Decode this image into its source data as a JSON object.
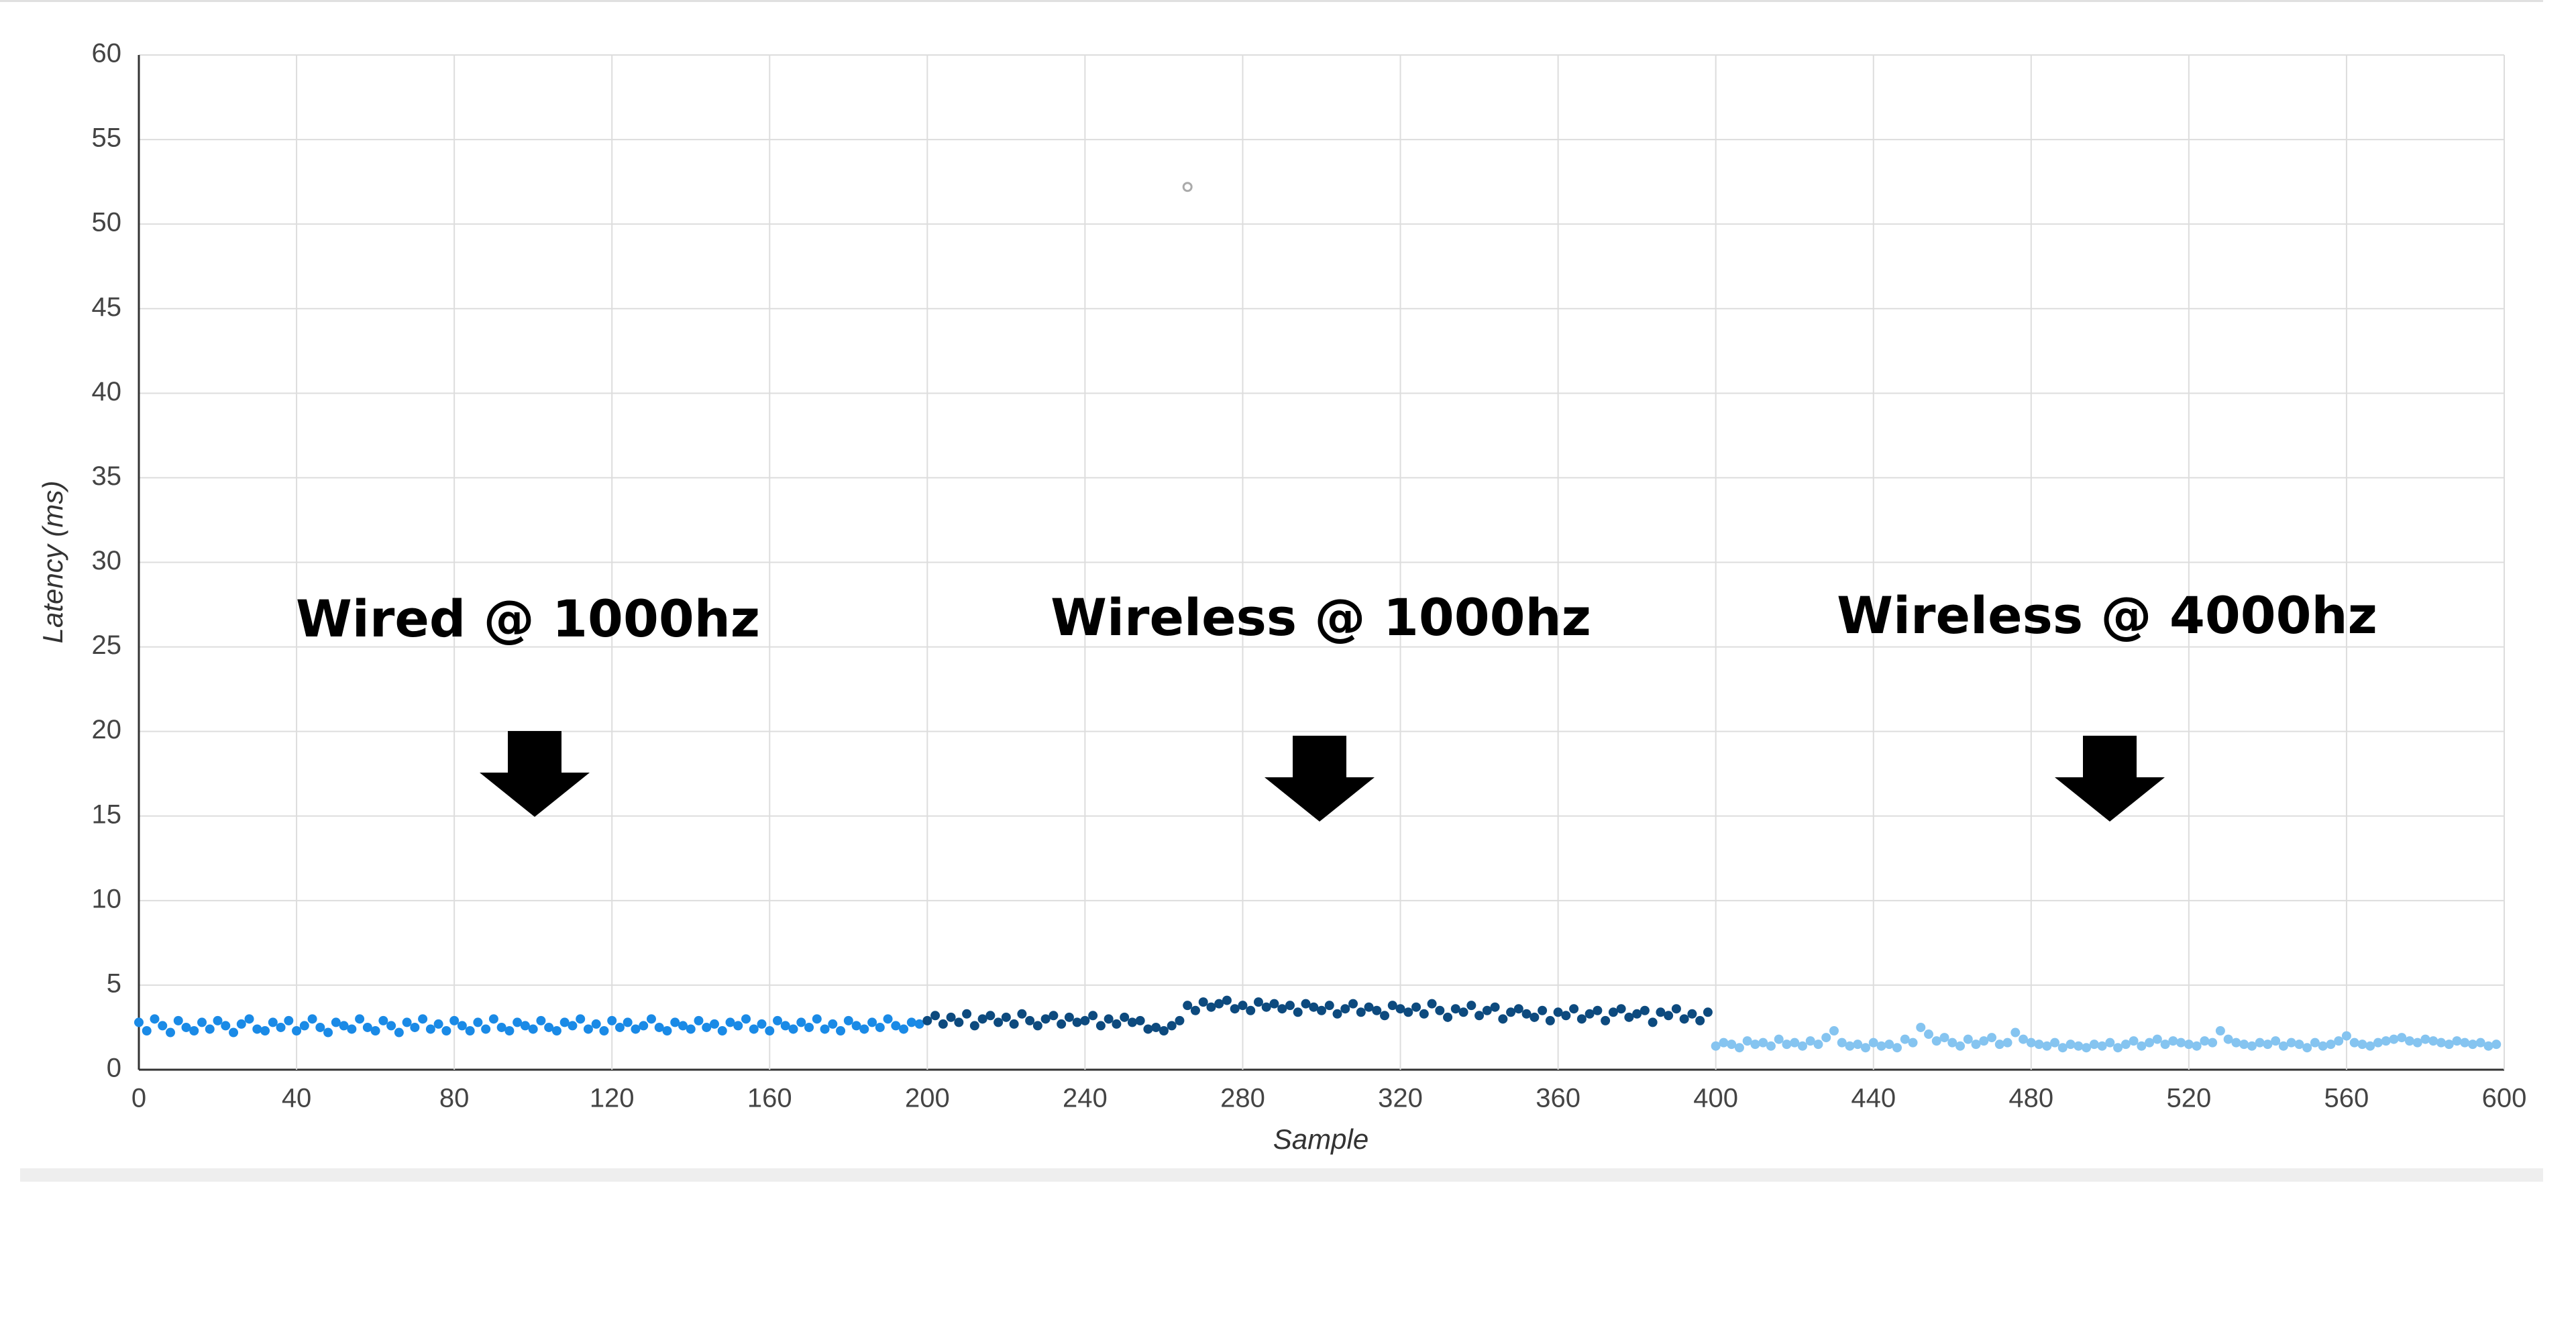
{
  "chart_data": {
    "type": "scatter",
    "xlabel": "Sample",
    "ylabel": "Latency (ms)",
    "xlim": [
      0,
      600
    ],
    "xticks": [
      0,
      40,
      80,
      120,
      160,
      200,
      240,
      280,
      320,
      360,
      400,
      440,
      480,
      520,
      560,
      600
    ],
    "ylim": [
      0,
      60
    ],
    "yticks": [
      0,
      5,
      10,
      15,
      20,
      25,
      30,
      35,
      40,
      45,
      50,
      55,
      60
    ],
    "grid": true,
    "annotations": [
      "Wired @ 1000hz",
      "Wireless @ 1000hz",
      "Wireless @ 4000hz"
    ],
    "series": [
      {
        "color": "#1a8ae6",
        "x": [
          0,
          2,
          4,
          6,
          8,
          10,
          12,
          14,
          16,
          18,
          20,
          22,
          24,
          26,
          28,
          30,
          32,
          34,
          36,
          38,
          40,
          42,
          44,
          46,
          48,
          50,
          52,
          54,
          56,
          58,
          60,
          62,
          64,
          66,
          68,
          70,
          72,
          74,
          76,
          78,
          80,
          82,
          84,
          86,
          88,
          90,
          92,
          94,
          96,
          98,
          100,
          102,
          104,
          106,
          108,
          110,
          112,
          114,
          116,
          118,
          120,
          122,
          124,
          126,
          128,
          130,
          132,
          134,
          136,
          138,
          140,
          142,
          144,
          146,
          148,
          150,
          152,
          154,
          156,
          158,
          160,
          162,
          164,
          166,
          168,
          170,
          172,
          174,
          176,
          178,
          180,
          182,
          184,
          186,
          188,
          190,
          192,
          194,
          196,
          198
        ],
        "values": [
          2.8,
          2.3,
          3.0,
          2.6,
          2.2,
          2.9,
          2.5,
          2.3,
          2.8,
          2.4,
          2.9,
          2.6,
          2.2,
          2.7,
          3.0,
          2.4,
          2.3,
          2.8,
          2.5,
          2.9,
          2.3,
          2.6,
          3.0,
          2.5,
          2.2,
          2.8,
          2.6,
          2.4,
          3.0,
          2.5,
          2.3,
          2.9,
          2.6,
          2.2,
          2.8,
          2.5,
          3.0,
          2.4,
          2.7,
          2.3,
          2.9,
          2.6,
          2.3,
          2.8,
          2.4,
          3.0,
          2.5,
          2.3,
          2.8,
          2.6,
          2.4,
          2.9,
          2.5,
          2.3,
          2.8,
          2.6,
          3.0,
          2.4,
          2.7,
          2.3,
          2.9,
          2.5,
          2.8,
          2.4,
          2.6,
          3.0,
          2.5,
          2.3,
          2.8,
          2.6,
          2.4,
          2.9,
          2.5,
          2.7,
          2.3,
          2.8,
          2.6,
          3.0,
          2.4,
          2.7,
          2.3,
          2.9,
          2.6,
          2.4,
          2.8,
          2.5,
          3.0,
          2.4,
          2.7,
          2.3,
          2.9,
          2.6,
          2.4,
          2.8,
          2.5,
          3.0,
          2.6,
          2.4,
          2.8,
          2.7
        ]
      },
      {
        "color": "#0d4a7e",
        "x": [
          200,
          202,
          204,
          206,
          208,
          210,
          212,
          214,
          216,
          218,
          220,
          222,
          224,
          226,
          228,
          230,
          232,
          234,
          236,
          238,
          240,
          242,
          244,
          246,
          248,
          250,
          252,
          254,
          256,
          258,
          260,
          262,
          264,
          266,
          268,
          270,
          272,
          274,
          276,
          278,
          280,
          282,
          284,
          286,
          288,
          290,
          292,
          294,
          296,
          298,
          300,
          302,
          304,
          306,
          308,
          310,
          312,
          314,
          316,
          318,
          320,
          322,
          324,
          326,
          328,
          330,
          332,
          334,
          336,
          338,
          340,
          342,
          344,
          346,
          348,
          350,
          352,
          354,
          356,
          358,
          360,
          362,
          364,
          366,
          368,
          370,
          372,
          374,
          376,
          378,
          380,
          382,
          384,
          386,
          388,
          390,
          392,
          394,
          396,
          398
        ],
        "values": [
          2.9,
          3.2,
          2.7,
          3.1,
          2.8,
          3.3,
          2.6,
          3.0,
          3.2,
          2.8,
          3.1,
          2.7,
          3.3,
          2.9,
          2.6,
          3.0,
          3.2,
          2.7,
          3.1,
          2.8,
          2.9,
          3.2,
          2.6,
          3.0,
          2.7,
          3.1,
          2.8,
          2.9,
          2.4,
          2.5,
          2.3,
          2.6,
          2.9,
          3.8,
          3.5,
          4.0,
          3.7,
          3.9,
          4.1,
          3.6,
          3.8,
          3.5,
          4.0,
          3.7,
          3.9,
          3.6,
          3.8,
          3.4,
          3.9,
          3.7,
          3.5,
          3.8,
          3.3,
          3.6,
          3.9,
          3.4,
          3.7,
          3.5,
          3.2,
          3.8,
          3.6,
          3.4,
          3.7,
          3.3,
          3.9,
          3.5,
          3.1,
          3.6,
          3.4,
          3.8,
          3.2,
          3.5,
          3.7,
          3.0,
          3.4,
          3.6,
          3.3,
          3.1,
          3.5,
          2.9,
          3.4,
          3.2,
          3.6,
          3.0,
          3.3,
          3.5,
          2.9,
          3.4,
          3.6,
          3.1,
          3.3,
          3.5,
          2.8,
          3.4,
          3.2,
          3.6,
          3.0,
          3.3,
          2.9,
          3.4
        ]
      },
      {
        "color": "#85c4f0",
        "x": [
          400,
          402,
          404,
          406,
          408,
          410,
          412,
          414,
          416,
          418,
          420,
          422,
          424,
          426,
          428,
          430,
          432,
          434,
          436,
          438,
          440,
          442,
          444,
          446,
          448,
          450,
          452,
          454,
          456,
          458,
          460,
          462,
          464,
          466,
          468,
          470,
          472,
          474,
          476,
          478,
          480,
          482,
          484,
          486,
          488,
          490,
          492,
          494,
          496,
          498,
          500,
          502,
          504,
          506,
          508,
          510,
          512,
          514,
          516,
          518,
          520,
          522,
          524,
          526,
          528,
          530,
          532,
          534,
          536,
          538,
          540,
          542,
          544,
          546,
          548,
          550,
          552,
          554,
          556,
          558,
          560,
          562,
          564,
          566,
          568,
          570,
          572,
          574,
          576,
          578,
          580,
          582,
          584,
          586,
          588,
          590,
          592,
          594,
          596,
          598
        ],
        "values": [
          1.4,
          1.6,
          1.5,
          1.3,
          1.7,
          1.5,
          1.6,
          1.4,
          1.8,
          1.5,
          1.6,
          1.4,
          1.7,
          1.5,
          1.9,
          2.3,
          1.6,
          1.4,
          1.5,
          1.3,
          1.6,
          1.4,
          1.5,
          1.3,
          1.8,
          1.6,
          2.5,
          2.1,
          1.7,
          1.9,
          1.6,
          1.4,
          1.8,
          1.5,
          1.7,
          1.9,
          1.5,
          1.6,
          2.2,
          1.8,
          1.6,
          1.5,
          1.4,
          1.6,
          1.3,
          1.5,
          1.4,
          1.3,
          1.5,
          1.4,
          1.6,
          1.3,
          1.5,
          1.7,
          1.4,
          1.6,
          1.8,
          1.5,
          1.7,
          1.6,
          1.5,
          1.4,
          1.7,
          1.6,
          2.3,
          1.8,
          1.6,
          1.5,
          1.4,
          1.6,
          1.5,
          1.7,
          1.4,
          1.6,
          1.5,
          1.3,
          1.6,
          1.4,
          1.5,
          1.7,
          2.0,
          1.6,
          1.5,
          1.4,
          1.6,
          1.7,
          1.8,
          1.9,
          1.7,
          1.6,
          1.8,
          1.7,
          1.6,
          1.5,
          1.7,
          1.6,
          1.5,
          1.6,
          1.4,
          1.5
        ]
      },
      {
        "color": "#aaaaaa",
        "hollow": true,
        "x": [
          266
        ],
        "values": [
          52.2
        ]
      }
    ]
  }
}
